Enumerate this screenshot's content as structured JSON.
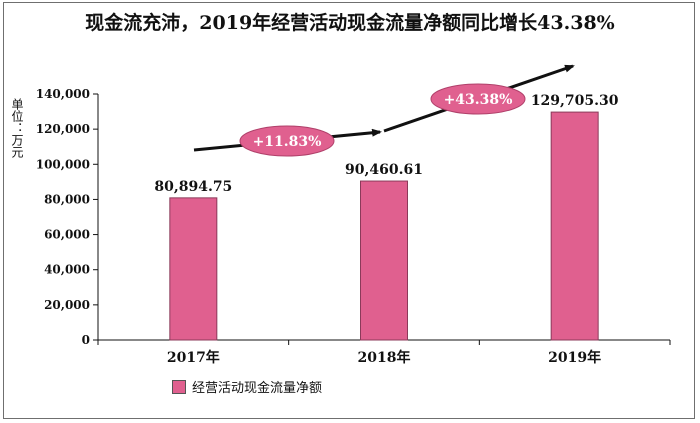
{
  "title": "现金流充沛，2019年经营活动现金流量净额同比增长43.38%",
  "unit_label": "单位：万元",
  "colors": {
    "bar": "#e0608f",
    "bar_border": "#8b3a5a",
    "badge": "#e0608f",
    "arrow": "#111111"
  },
  "chart_data": {
    "type": "bar",
    "categories": [
      "2017年",
      "2018年",
      "2019年"
    ],
    "series": [
      {
        "name": "经营活动现金流量净额",
        "values": [
          80894.75,
          90460.61,
          129705.3
        ]
      }
    ],
    "data_labels": [
      "80,894.75",
      "90,460.61",
      "129,705.30"
    ],
    "ylim": [
      0,
      140000
    ],
    "yticks": [
      0,
      20000,
      40000,
      60000,
      80000,
      100000,
      120000,
      140000
    ],
    "ytick_labels": [
      "0",
      "20,000",
      "40,000",
      "60,000",
      "80,000",
      "100,000",
      "120,000",
      "140,000"
    ],
    "growth_annotations": [
      "+11.83%",
      "+43.38%"
    ],
    "legend_position": "bottom-left",
    "grid": false
  }
}
